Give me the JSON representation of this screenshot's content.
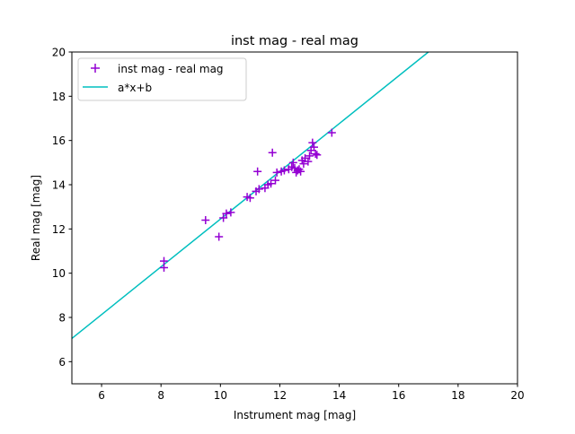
{
  "chart_data": {
    "type": "scatter",
    "title": "inst mag - real mag",
    "xlabel": "Instrument mag [mag]",
    "ylabel": "Real mag [mag]",
    "xlim": [
      5,
      20
    ],
    "ylim": [
      5,
      20
    ],
    "xticks": [
      6,
      8,
      10,
      12,
      14,
      16,
      18,
      20
    ],
    "yticks": [
      6,
      8,
      10,
      12,
      14,
      16,
      18,
      20
    ],
    "grid": false,
    "legend_position": "upper-left",
    "series": [
      {
        "name": "inst mag - real mag",
        "kind": "scatter",
        "marker": "+",
        "color": "#9400d3",
        "points": [
          [
            8.1,
            10.55
          ],
          [
            8.1,
            10.25
          ],
          [
            9.5,
            12.4
          ],
          [
            9.95,
            11.65
          ],
          [
            10.1,
            12.5
          ],
          [
            10.2,
            12.7
          ],
          [
            10.35,
            12.75
          ],
          [
            10.9,
            13.45
          ],
          [
            11.0,
            13.4
          ],
          [
            11.2,
            13.7
          ],
          [
            11.25,
            14.6
          ],
          [
            11.3,
            13.8
          ],
          [
            11.5,
            13.85
          ],
          [
            11.6,
            14.0
          ],
          [
            11.7,
            14.05
          ],
          [
            11.75,
            15.45
          ],
          [
            11.85,
            14.2
          ],
          [
            11.9,
            14.55
          ],
          [
            12.05,
            14.6
          ],
          [
            12.15,
            14.65
          ],
          [
            12.3,
            14.7
          ],
          [
            12.4,
            14.8
          ],
          [
            12.45,
            15.0
          ],
          [
            12.5,
            14.75
          ],
          [
            12.55,
            14.55
          ],
          [
            12.6,
            14.65
          ],
          [
            12.65,
            14.7
          ],
          [
            12.7,
            14.6
          ],
          [
            12.75,
            15.1
          ],
          [
            12.8,
            14.95
          ],
          [
            12.85,
            15.2
          ],
          [
            12.95,
            15.05
          ],
          [
            13.0,
            15.3
          ],
          [
            13.05,
            15.55
          ],
          [
            13.1,
            15.9
          ],
          [
            13.15,
            15.7
          ],
          [
            13.2,
            15.4
          ],
          [
            13.25,
            15.35
          ],
          [
            13.75,
            16.35
          ]
        ]
      },
      {
        "name": "a*x+b",
        "kind": "line",
        "color": "#00bfbf",
        "points": [
          [
            5,
            7.05
          ],
          [
            17.0,
            20.0
          ]
        ]
      }
    ]
  }
}
